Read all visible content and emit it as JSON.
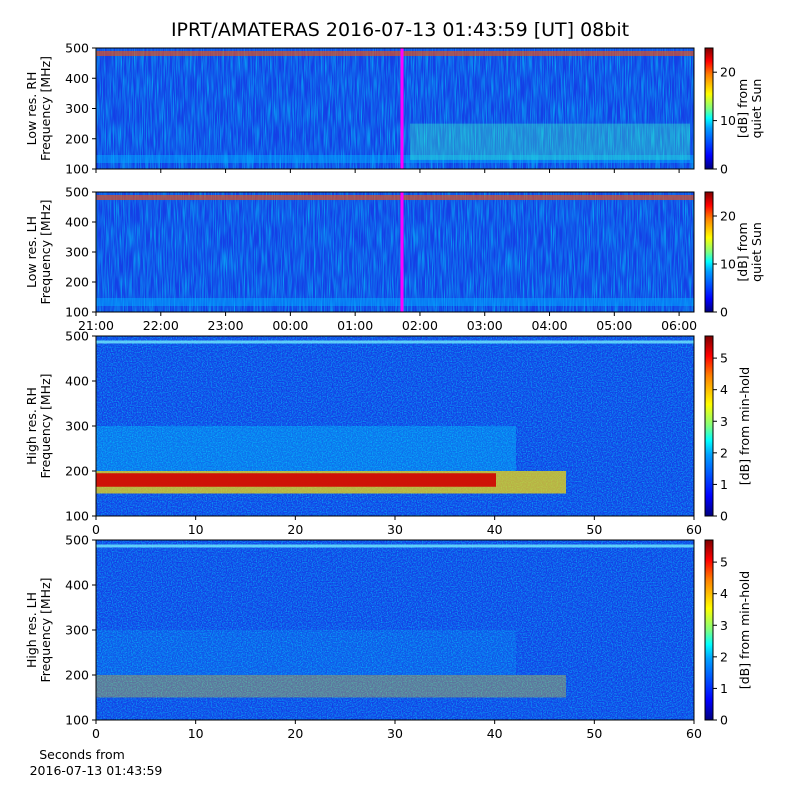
{
  "chart_data": [
    {
      "type": "heatmap",
      "title": "IPRT/AMATERAS 2016-07-13 01:43:59 [UT]   08bit",
      "ylabel": [
        "Low res. RH",
        "Frequency [MHz]"
      ],
      "xlim": [
        0,
        9.23
      ],
      "xticks": [
        0,
        1,
        2,
        3,
        4,
        5,
        6,
        7,
        8,
        9
      ],
      "ylim": [
        100,
        500
      ],
      "yticks": [
        100,
        200,
        300,
        400,
        500
      ],
      "colorbar_label": [
        "[dB] from",
        "quiet Sun"
      ],
      "clim": [
        0,
        25
      ],
      "cticks": [
        0,
        10,
        20
      ]
    },
    {
      "type": "heatmap",
      "ylabel": [
        "Low res. LH",
        "Frequency [MHz]"
      ],
      "xlim": [
        0,
        9.23
      ],
      "xticks": [
        {
          "value": 0,
          "label": "21:00"
        },
        {
          "value": 1,
          "label": "22:00"
        },
        {
          "value": 2,
          "label": "23:00"
        },
        {
          "value": 3,
          "label": "00:00"
        },
        {
          "value": 4,
          "label": "01:00"
        },
        {
          "value": 5,
          "label": "02:00"
        },
        {
          "value": 6,
          "label": "03:00"
        },
        {
          "value": 7,
          "label": "04:00"
        },
        {
          "value": 8,
          "label": "05:00"
        },
        {
          "value": 9,
          "label": "06:00"
        }
      ],
      "ylim": [
        100,
        500
      ],
      "yticks": [
        100,
        200,
        300,
        400,
        500
      ],
      "colorbar_label": [
        "[dB] from",
        "quiet Sun"
      ],
      "clim": [
        0,
        25
      ],
      "cticks": [
        0,
        10,
        20
      ]
    },
    {
      "type": "heatmap",
      "ylabel": [
        "High res. RH",
        "Frequency [MHz]"
      ],
      "xlim": [
        0,
        60
      ],
      "xticks": [
        0,
        10,
        20,
        30,
        40,
        50,
        60
      ],
      "ylim": [
        100,
        500
      ],
      "yticks": [
        100,
        200,
        300,
        400,
        500
      ],
      "colorbar_label": [
        "[dB] from min-hold"
      ],
      "clim": [
        0,
        5.7
      ],
      "cticks": [
        0,
        1,
        2,
        3,
        4,
        5
      ]
    },
    {
      "type": "heatmap",
      "ylabel": [
        "High res. LH",
        "Frequency [MHz]"
      ],
      "xlim": [
        0,
        60
      ],
      "xticks": [
        0,
        10,
        20,
        30,
        40,
        50,
        60
      ],
      "ylim": [
        100,
        500
      ],
      "yticks": [
        100,
        200,
        300,
        400,
        500
      ],
      "xlabel": [
        "Seconds from",
        "2016-07-13 01:43:59"
      ],
      "colorbar_label": [
        "[dB] from min-hold"
      ],
      "clim": [
        0,
        5.7
      ],
      "cticks": [
        0,
        1,
        2,
        3,
        4,
        5
      ]
    }
  ]
}
